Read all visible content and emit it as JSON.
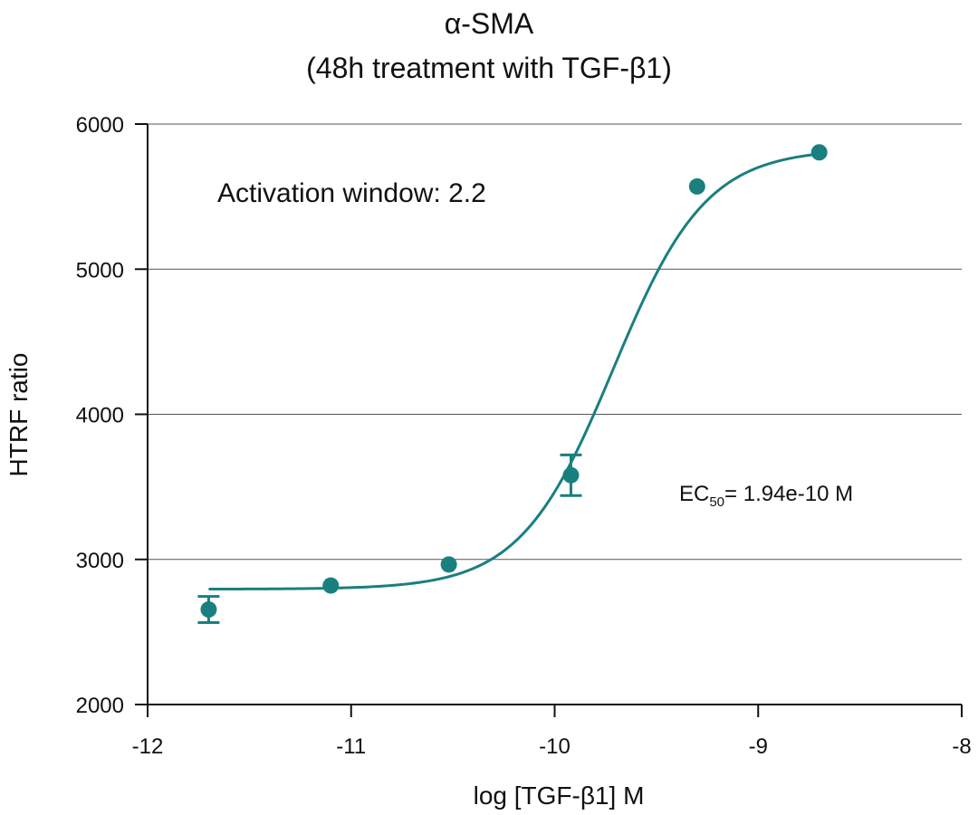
{
  "chart_data": {
    "type": "scatter",
    "title": "α-SMA",
    "subtitle": "(48h treatment with TGF-β1)",
    "xlabel": "log [TGF-β1] M",
    "ylabel": "HTRF ratio",
    "xlim": [
      -12,
      -8
    ],
    "ylim": [
      2000,
      6000
    ],
    "xticks": [
      -12,
      -11,
      -10,
      -9,
      -8
    ],
    "xtick_labels": [
      "-12",
      "-11",
      "-10",
      "-9",
      "-8"
    ],
    "yticks": [
      2000,
      3000,
      4000,
      5000,
      6000
    ],
    "ytick_labels": [
      "2000",
      "3000",
      "4000",
      "5000",
      "6000"
    ],
    "grid": "horizontal",
    "color": "#1a7f7f",
    "series": [
      {
        "points": [
          {
            "x": -11.7,
            "y": 2655,
            "err": 90
          },
          {
            "x": -11.1,
            "y": 2820,
            "err": 0
          },
          {
            "x": -10.52,
            "y": 2965,
            "err": 0
          },
          {
            "x": -9.92,
            "y": 3580,
            "err": 140
          },
          {
            "x": -9.3,
            "y": 5570,
            "err": 0
          },
          {
            "x": -8.7,
            "y": 5805,
            "err": 0
          }
        ],
        "fit": {
          "model": "4PL",
          "bottom": 2795,
          "top": 5830,
          "log_ec50": -9.712,
          "hill": 1.9,
          "x_range": [
            -11.7,
            -8.7
          ]
        }
      }
    ],
    "annotations": {
      "activation_window": "Activation window: 2.2",
      "ec50_prefix": "EC",
      "ec50_sub": "50",
      "ec50_value": "= 1.94e-10 M"
    }
  }
}
